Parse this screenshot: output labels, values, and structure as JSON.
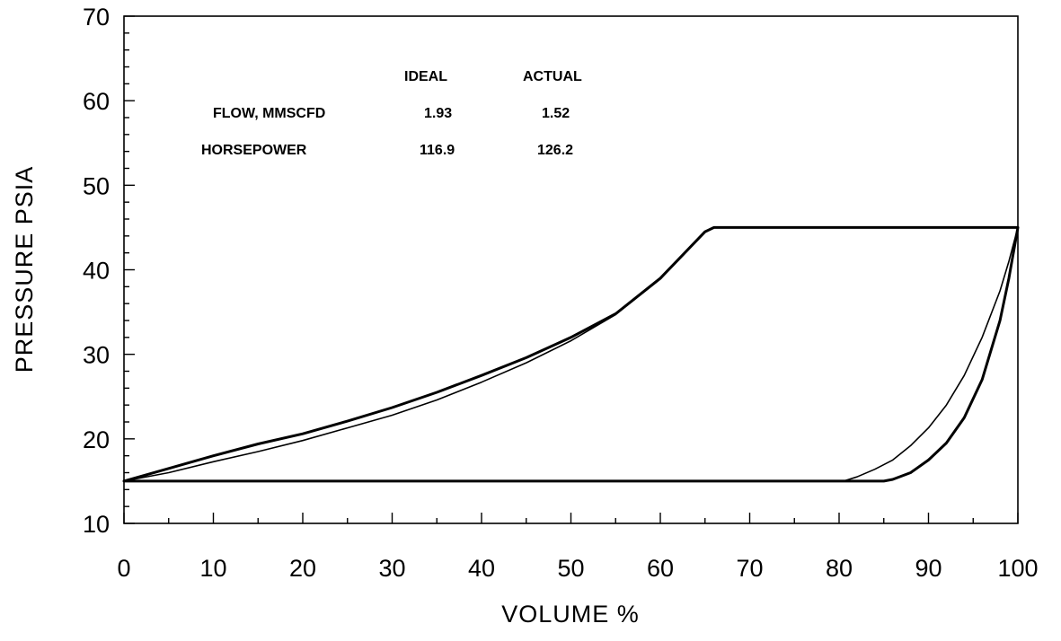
{
  "chart_data": {
    "type": "line",
    "xlabel": "VOLUME %",
    "ylabel": "PRESSURE PSIA",
    "xlim": [
      0,
      100
    ],
    "ylim": [
      10,
      70
    ],
    "x_ticks": [
      "0",
      "10",
      "20",
      "30",
      "40",
      "50",
      "60",
      "70",
      "80",
      "90",
      "100"
    ],
    "y_ticks": [
      "10",
      "20",
      "30",
      "40",
      "50",
      "60",
      "70"
    ],
    "grid": false,
    "legend": "none",
    "series": [
      {
        "line": "thick",
        "x": [
          0,
          5,
          10,
          15,
          20,
          25,
          30,
          35,
          40,
          45,
          50,
          55,
          60,
          63,
          65,
          66,
          100,
          99,
          98,
          96,
          94,
          92,
          90,
          88,
          86,
          85,
          0
        ],
        "y": [
          15.0,
          16.5,
          18.0,
          19.4,
          20.6,
          22.1,
          23.7,
          25.5,
          27.5,
          29.6,
          32.0,
          34.8,
          39.0,
          42.3,
          44.5,
          45.0,
          45.0,
          39.0,
          34.0,
          27.0,
          22.5,
          19.5,
          17.5,
          16.0,
          15.2,
          15.0,
          15.0
        ]
      },
      {
        "line": "thin",
        "x": [
          0,
          5,
          10,
          15,
          20,
          25,
          30,
          35,
          40,
          45,
          50,
          55,
          60,
          63,
          65,
          66,
          100,
          99,
          98,
          96,
          94,
          92,
          90,
          88,
          86,
          84,
          82,
          80.5
        ],
        "y": [
          15.0,
          16.0,
          17.3,
          18.5,
          19.8,
          21.3,
          22.8,
          24.6,
          26.7,
          29.0,
          31.6,
          34.7,
          38.9,
          42.3,
          44.5,
          45.0,
          45.0,
          41.0,
          37.5,
          32.0,
          27.5,
          24.0,
          21.3,
          19.2,
          17.5,
          16.4,
          15.5,
          15.0
        ]
      }
    ]
  },
  "table": {
    "headers": [
      "IDEAL",
      "ACTUAL"
    ],
    "rows": [
      {
        "label": "FLOW, MMSCFD",
        "ideal": "1.93",
        "actual": "1.52"
      },
      {
        "label": "HORSEPOWER",
        "ideal": "116.9",
        "actual": "126.2"
      }
    ]
  }
}
